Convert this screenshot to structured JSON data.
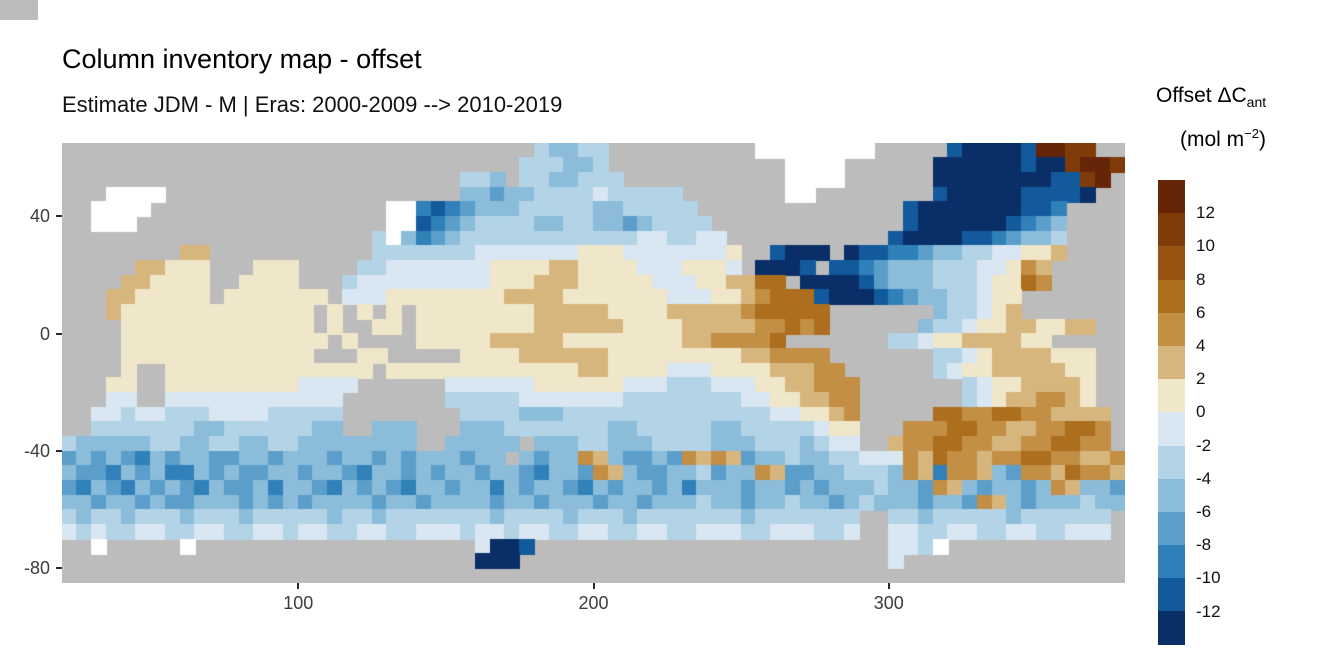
{
  "title": "Column inventory map - offset",
  "subtitle": "Estimate JDM - M | Eras: 2000-2009 --> 2010-2019",
  "legend": {
    "title_main": "Offset ΔC",
    "title_sub": "ant",
    "units_prefix": "(mol m",
    "units_sup": "−2",
    "units_suffix": ")",
    "labels": [
      "12",
      "10",
      "8",
      "6",
      "4",
      "2",
      "0",
      "-2",
      "-4",
      "-6",
      "-8",
      "-10",
      "-12"
    ],
    "colors_top_to_bottom": [
      "#662506",
      "#7f3b08",
      "#985410",
      "#ad6e1e",
      "#c28f45",
      "#d7b67e",
      "#f0e6c9",
      "#d8e7f1",
      "#b3d3e6",
      "#8bbcda",
      "#5a9ec9",
      "#3080b9",
      "#135a9c",
      "#0a2f68"
    ],
    "bin_labels_top_to_bottom": [
      ">12",
      "10 to 12",
      "8 to 10",
      "6 to 8",
      "4 to 6",
      "2 to 4",
      "0 to 2",
      "-2 to 0",
      "-4 to -2",
      "-6 to -4",
      "-8 to -6",
      "-10 to -8",
      "-12 to -10",
      "<-12"
    ]
  },
  "axes": {
    "x_ticks": [
      {
        "label": "100",
        "lon": 100
      },
      {
        "label": "200",
        "lon": 200
      },
      {
        "label": "300",
        "lon": 300
      }
    ],
    "y_ticks": [
      {
        "label": "40",
        "lat": 40
      },
      {
        "label": "0",
        "lat": 0
      },
      {
        "label": "-40",
        "lat": -40
      },
      {
        "label": "-80",
        "lat": -80
      }
    ]
  },
  "colors": {
    "land": "#bcbcbc",
    "missing": "#ffffff",
    "background": "#ffffff"
  },
  "chart_data": {
    "type": "heatmap",
    "title": "Column inventory map - offset",
    "subtitle": "Estimate JDM - M | Eras: 2000-2009 --> 2010-2019",
    "xlabel": "",
    "ylabel": "",
    "legend_title": "Offset ΔCant (mol m−2)",
    "x_range_lon": [
      20,
      380
    ],
    "y_range_lat": [
      65,
      -85
    ],
    "value_bins_mol_m2": [
      ">12",
      "10..12",
      "8..10",
      "6..8",
      "4..6",
      "2..4",
      "0..2",
      "-2..0",
      "-4..-2",
      "-6..-4",
      "-8..-6",
      "-10..-8",
      "-12..-10",
      "<-12"
    ],
    "description": "Global ocean map (Pacific-centered, lon 20-380) of anthropogenic carbon column inventory change offset between two estimates. Negative (blue) anomalies dominate the North Atlantic, North Pacific and Southern Ocean; positive (brown) anomalies in the South Atlantic, subtropical Indian Ocean, eastern tropical Pacific and Nordic Seas. Gray = land, white = no data.",
    "grid_encoding": {
      ".": "land",
      "w": "missing",
      "0": "#662506",
      "1": "#7f3b08",
      "2": "#985410",
      "3": "#ad6e1e",
      "4": "#c28f45",
      "5": "#d7b67e",
      "6": "#f0e6c9",
      "7": "#d8e7f1",
      "8": "#b3d3e6",
      "9": "#8bbcda",
      "a": "#5a9ec9",
      "b": "#3080b9",
      "c": "#135a9c",
      "d": "#0a2f68"
    },
    "grid": [
      "................................89988..........wwwwwwww.....cddddc0011..",
      "...............................888998............wwww......ddddddcdd1001",
      "...........................889.8899888...........wwww......ddddddddcc10.",
      "...wwww....................99a998888788888.......ww........cdddddccccd..",
      "..wwww................wwbcba999888889988888..............cdddddddccb....",
      "..www.................wwcba98888998899a98888.............cddddddcba9....",
      ".....................8w9ba9888888888888778877...........cddddccba998....",
      "........55...........8888888777777766677777776..cddd.dccbba998877665....",
      ".....55666...666....88777777766665566667776667.dddc.ccba99988877645.....",
      "....556666..6666...877777777766655566666777665533.ddddca999888766 34....",
      "...5566666.6666666.7776666666655556666666777665433 3cdddcba9988766......",
      "...5666666666666 6.6.6.6.66666666555556666555554333 33.......98876 5....",
      "....6666666666666.6..66.66666666555555666655555443 43......988766556655..",
      "....66666666666666.6....   66666555556666666655444 43.......88766555566..",
      "....6666666666666...66.....66665555556666666665544 44.......88765555666..",
      "....6..66666666666666.66666 66666666556666777666655 544......87665555566..",
      "...66..666666666777 7......777777666666777888777665 5444.......876655556..",
      "...77..777777777777.......888887777777888888887766 5544.......876554456..",
      "..77877888777788888........88889998888888888888877 6654.....33443344555 5.",
      "..88888889988888899..999...99988888889988888998888 8766...4443344554433 4.",
      "8999998899889988999999 99..99999.99988999888899988 89877..544334455443344",
      "a9a9ab9a99aa99a999a99a9a999a99.9a99459aa9a4545a998 99887774534454433445 54",
      "9aab9a9bb9a9aa99a99ab99a9a99a99ab99a459aa998a9945a a99888945b4459a4453445",
      "ab9ab9a9ab9aa9b99ab9a9ab99a99b9a99ab9a99a9b999a99a 9a999899a459a99a945 99a",
      "99a99a9aa999a9a9a9999a99a9999a99a999a99a999899a998 99a98999a99a459a999899",
      "8988988898889888889889888888898888988898888888988 88888..889888889888888",
      "7878877887788778778877887778778778877887788777887 77887..778877887788777",
      "..w.....w...................7ddc........................77 8w............",
      "............................ddd.........................7...............",
      "........................................................................"
    ]
  }
}
